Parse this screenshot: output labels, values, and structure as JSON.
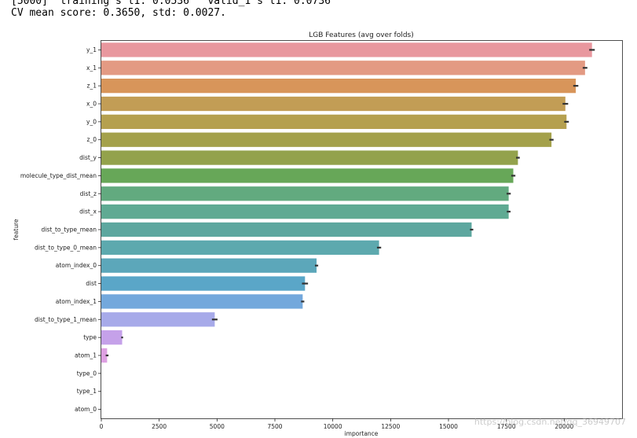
{
  "console": {
    "lines": [
      "[5000]  training's l1: 0.0536   valid_1's l1: 0.0736",
      "CV mean score: 0.3650, std: 0.0027."
    ]
  },
  "watermark": "https://blog.csdn.net/qq_36949707",
  "chart_data": {
    "type": "bar",
    "orientation": "horizontal",
    "title": "LGB Features (avg over folds)",
    "xlabel": "importance",
    "ylabel": "feature",
    "xlim": [
      0,
      22500
    ],
    "xticks": [
      0,
      2500,
      5000,
      7500,
      10000,
      12500,
      15000,
      17500,
      20000
    ],
    "grid": false,
    "categories": [
      "y_1",
      "x_1",
      "z_1",
      "x_0",
      "y_0",
      "z_0",
      "dist_y",
      "molecule_type_dist_mean",
      "dist_z",
      "dist_x",
      "dist_to_type_mean",
      "dist_to_type_0_mean",
      "atom_index_0",
      "dist",
      "atom_index_1",
      "dist_to_type_1_mean",
      "type",
      "atom_1",
      "type_0",
      "type_1",
      "atom_0"
    ],
    "values": [
      21200,
      20900,
      20500,
      20050,
      20100,
      19450,
      18000,
      17800,
      17600,
      17600,
      16000,
      12000,
      9300,
      8800,
      8700,
      4900,
      900,
      250,
      0,
      0,
      0
    ],
    "errors": [
      120,
      100,
      110,
      120,
      100,
      90,
      80,
      90,
      90,
      80,
      70,
      90,
      70,
      130,
      70,
      120,
      40,
      60,
      0,
      0,
      0
    ],
    "colors": [
      "#e8979e",
      "#e39a83",
      "#d8955a",
      "#c29d55",
      "#b5a04f",
      "#a4a14b",
      "#93a24c",
      "#67a758",
      "#62aa7f",
      "#5faa93",
      "#5da79f",
      "#5da9ae",
      "#5ca7ba",
      "#5aa6c8",
      "#73a8dc",
      "#a7aae9",
      "#c5a1e9",
      "#dea0e2",
      "#e59fdc",
      "#e79cd0",
      "#e89ac5"
    ]
  }
}
